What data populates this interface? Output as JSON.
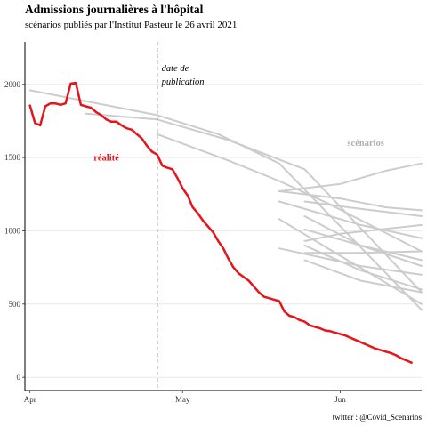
{
  "chart_data": {
    "type": "line",
    "title": "Admissions journalières à l'hôpital",
    "subtitle": "scénarios publiés par l'Institut Pasteur le 26 avril 2021",
    "caption": "twitter : @Covid_Scenarios",
    "xlabel": "",
    "ylabel": "",
    "x_ticks": [
      "Apr",
      "May",
      "Jun"
    ],
    "x_tick_dates": [
      "2021-04-01",
      "2021-05-01",
      "2021-06-01"
    ],
    "xlim": [
      "2021-03-31",
      "2021-06-17"
    ],
    "y_ticks": [
      0,
      500,
      1000,
      1500,
      2000
    ],
    "ylim": [
      -90,
      2290
    ],
    "grid": "horizontal",
    "colors": {
      "reality": "#e8141b",
      "scenarios": "#cccccc",
      "vline": "#000000",
      "grid": "#e5e5e5",
      "axis": "#000000"
    },
    "vline": {
      "date": "2021-04-26",
      "label_line1": "date de",
      "label_line2": "publication"
    },
    "annotations": {
      "reality": {
        "text": "réalité",
        "date": "2021-04-16",
        "value": 1480
      },
      "scenarios": {
        "text": "scénarios",
        "date": "2021-06-06",
        "value": 1580
      }
    },
    "reality": {
      "name": "réalité",
      "dates": [
        "2021-04-01",
        "2021-04-02",
        "2021-04-03",
        "2021-04-04",
        "2021-04-05",
        "2021-04-06",
        "2021-04-07",
        "2021-04-08",
        "2021-04-09",
        "2021-04-10",
        "2021-04-11",
        "2021-04-12",
        "2021-04-13",
        "2021-04-14",
        "2021-04-15",
        "2021-04-16",
        "2021-04-17",
        "2021-04-18",
        "2021-04-19",
        "2021-04-20",
        "2021-04-21",
        "2021-04-22",
        "2021-04-23",
        "2021-04-24",
        "2021-04-25",
        "2021-04-26",
        "2021-04-27",
        "2021-04-28",
        "2021-04-29",
        "2021-04-30",
        "2021-05-01",
        "2021-05-02",
        "2021-05-03",
        "2021-05-04",
        "2021-05-05",
        "2021-05-06",
        "2021-05-07",
        "2021-05-08",
        "2021-05-09",
        "2021-05-10",
        "2021-05-11",
        "2021-05-12",
        "2021-05-13",
        "2021-05-14",
        "2021-05-15",
        "2021-05-16",
        "2021-05-17",
        "2021-05-18",
        "2021-05-19",
        "2021-05-20",
        "2021-05-21",
        "2021-05-22",
        "2021-05-23",
        "2021-05-24",
        "2021-05-25",
        "2021-05-26",
        "2021-05-27",
        "2021-05-28",
        "2021-05-29",
        "2021-05-30",
        "2021-05-31",
        "2021-06-01",
        "2021-06-02",
        "2021-06-03",
        "2021-06-04",
        "2021-06-05",
        "2021-06-06",
        "2021-06-07",
        "2021-06-08",
        "2021-06-09",
        "2021-06-10",
        "2021-06-11",
        "2021-06-12",
        "2021-06-13",
        "2021-06-14",
        "2021-06-15"
      ],
      "values": [
        1855,
        1735,
        1720,
        1850,
        1870,
        1870,
        1860,
        1870,
        2005,
        2010,
        1860,
        1850,
        1840,
        1810,
        1790,
        1760,
        1745,
        1745,
        1720,
        1700,
        1690,
        1660,
        1630,
        1580,
        1540,
        1520,
        1445,
        1430,
        1420,
        1360,
        1290,
        1240,
        1160,
        1120,
        1070,
        1030,
        990,
        930,
        880,
        810,
        750,
        710,
        685,
        660,
        620,
        580,
        550,
        540,
        530,
        520,
        450,
        420,
        410,
        390,
        380,
        355,
        345,
        335,
        320,
        315,
        305,
        295,
        285,
        270,
        255,
        240,
        225,
        210,
        195,
        185,
        175,
        165,
        150,
        130,
        115,
        100
      ]
    },
    "series": [
      {
        "dates": [
          "2021-04-01",
          "2021-04-26",
          "2021-05-08",
          "2021-05-20",
          "2021-06-17"
        ],
        "values": [
          1960,
          1790,
          1660,
          1460,
          460
        ]
      },
      {
        "dates": [
          "2021-04-12",
          "2021-04-26",
          "2021-05-10",
          "2021-05-25",
          "2021-06-17"
        ],
        "values": [
          1800,
          1760,
          1620,
          1420,
          580
        ]
      },
      {
        "dates": [
          "2021-04-26",
          "2021-05-10",
          "2021-05-20",
          "2021-05-30",
          "2021-06-17"
        ],
        "values": [
          1660,
          1480,
          1340,
          1180,
          860
        ]
      },
      {
        "dates": [
          "2021-05-20",
          "2021-06-01",
          "2021-06-10",
          "2021-06-17"
        ],
        "values": [
          1270,
          1320,
          1410,
          1460
        ]
      },
      {
        "dates": [
          "2021-05-20",
          "2021-06-01",
          "2021-06-10",
          "2021-06-17"
        ],
        "values": [
          1270,
          1220,
          1160,
          1140
        ]
      },
      {
        "dates": [
          "2021-05-25",
          "2021-06-05",
          "2021-06-17"
        ],
        "values": [
          1200,
          1150,
          1100
        ]
      },
      {
        "dates": [
          "2021-05-25",
          "2021-06-05",
          "2021-06-17"
        ],
        "values": [
          1100,
          900,
          760
        ]
      },
      {
        "dates": [
          "2021-05-20",
          "2021-06-05",
          "2021-06-17"
        ],
        "values": [
          1200,
          1040,
          950
        ]
      },
      {
        "dates": [
          "2021-05-25",
          "2021-06-01",
          "2021-06-17"
        ],
        "values": [
          930,
          980,
          1040
        ]
      },
      {
        "dates": [
          "2021-05-25",
          "2021-06-05",
          "2021-06-17"
        ],
        "values": [
          850,
          850,
          860
        ]
      },
      {
        "dates": [
          "2021-05-20",
          "2021-06-05",
          "2021-06-17"
        ],
        "values": [
          880,
          760,
          700
        ]
      },
      {
        "dates": [
          "2021-05-25",
          "2021-06-05",
          "2021-06-17"
        ],
        "values": [
          900,
          730,
          600
        ]
      },
      {
        "dates": [
          "2021-05-25",
          "2021-06-05",
          "2021-06-17"
        ],
        "values": [
          800,
          660,
          580
        ]
      },
      {
        "dates": [
          "2021-05-20",
          "2021-06-01",
          "2021-06-17"
        ],
        "values": [
          1080,
          830,
          500
        ]
      },
      {
        "dates": [
          "2021-05-25",
          "2021-06-05",
          "2021-06-17"
        ],
        "values": [
          1010,
          900,
          800
        ]
      }
    ]
  }
}
